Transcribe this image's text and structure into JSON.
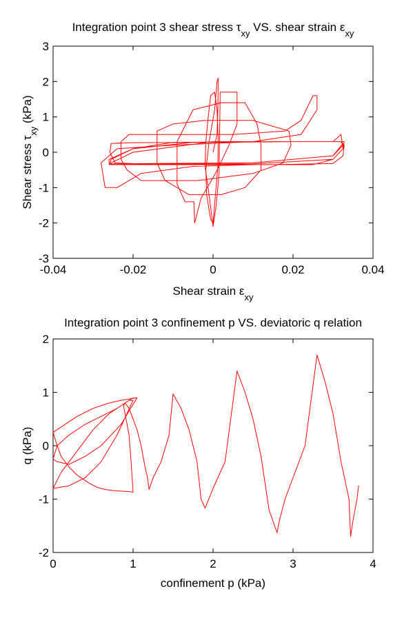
{
  "chart_data": [
    {
      "type": "line",
      "title": "Integration point 3 shear stress τxy VS. shear strain εxy",
      "xlabel": "Shear strain εxy",
      "ylabel": "Shear stress τxy (kPa)",
      "xlim": [
        -0.04,
        0.04
      ],
      "ylim": [
        -3,
        3
      ],
      "xticks": [
        -0.04,
        -0.02,
        0,
        0.02,
        0.04
      ],
      "xtick_labels": [
        "-0.04",
        "-0.02",
        "0",
        "0.02",
        "0.04"
      ],
      "yticks": [
        -3,
        -2,
        -1,
        0,
        1,
        2,
        3
      ],
      "ytick_labels": [
        "-3",
        "-2",
        "-1",
        "0",
        "1",
        "2",
        "3"
      ],
      "grid": false,
      "color": "#ff0000",
      "series": [
        {
          "x": [
            0,
            0.001,
            0.0012,
            0.0013,
            0.001,
            0.0004,
            -0.001,
            -0.0018,
            -0.0016,
            -0.0006,
            0,
            0.0006,
            0.0012,
            0.0013,
            0.001,
            0.0004,
            -0.0006,
            -0.0012,
            -0.0018,
            -0.002,
            -0.001,
            0,
            0.0008,
            0.0015,
            0.0018,
            0.006,
            0.006,
            0.004,
            0.0006,
            -0.003,
            -0.0046,
            -0.0048,
            -0.007,
            -0.009,
            -0.009,
            -0.005,
            0.002,
            0.008,
            0.011,
            0.012,
            0.012,
            0.008,
            0.002,
            -0.006,
            -0.012,
            -0.014,
            -0.014,
            -0.01,
            -0.002,
            0.01,
            0.019,
            0.0195,
            0.0175,
            0.01,
            -0.004,
            -0.018,
            -0.0215,
            -0.023,
            -0.023,
            -0.021,
            -0.012,
            0.005,
            0.018,
            0.022,
            0.025,
            0.026,
            0.026,
            0.022,
            0.01,
            -0.01,
            -0.024,
            -0.028,
            -0.027,
            -0.024,
            -0.018,
            -0.005,
            0.01,
            0.025,
            0.03,
            0.0325,
            0.032,
            0.03,
            0.02,
            0,
            -0.02,
            -0.0255,
            -0.0258,
            -0.0245,
            -0.015,
            0,
            0.015,
            0.03,
            0.0325,
            0.0328,
            0.032,
            0.025,
            0.01,
            -0.01,
            -0.02,
            -0.026,
            -0.026,
            -0.025,
            -0.015,
            0.01,
            0.03,
            0.0325,
            0.0328,
            0.03,
            0.015,
            -0.005,
            -0.02,
            -0.0255,
            -0.0258,
            -0.025,
            -0.01,
            0.01,
            0.03,
            0.0325,
            0.032,
            0.02,
            0,
            -0.02,
            -0.0255,
            -0.0255,
            -0.015,
            0.01,
            0.03,
            0.0325
          ],
          "y": [
            0,
            0.5,
            1.2,
            2.1,
            2.0,
            1.2,
            0.3,
            -0.5,
            -1.2,
            -1.9,
            -2.0,
            -1.2,
            -0.4,
            0.4,
            1.2,
            1.7,
            1.6,
            1.0,
            0.3,
            -0.4,
            -1.2,
            -2.1,
            -1.5,
            -0.6,
            1.7,
            1.7,
            0.8,
            0.2,
            -0.6,
            -1.3,
            -2.0,
            -1.4,
            -1.4,
            -0.9,
            0.3,
            1.2,
            1.4,
            1.4,
            0.8,
            0.2,
            -0.5,
            -1.0,
            -1.2,
            -1.2,
            -0.8,
            -0.3,
            0.6,
            0.8,
            0.9,
            0.9,
            0.6,
            0.2,
            -0.3,
            -0.6,
            -0.8,
            -0.8,
            -0.5,
            -0.2,
            0.3,
            0.5,
            0.5,
            0.5,
            0.6,
            0.9,
            1.6,
            1.6,
            1.2,
            0.5,
            0.3,
            0.2,
            0.1,
            -0.3,
            -1.0,
            -1.0,
            -0.6,
            -0.4,
            -0.35,
            -0.35,
            -0.2,
            0.1,
            0.5,
            0.3,
            0.3,
            0.28,
            0.27,
            0.25,
            0.0,
            -0.3,
            -0.35,
            -0.35,
            -0.35,
            -0.32,
            -0.1,
            0.2,
            0.3,
            0.3,
            0.3,
            0.28,
            0.1,
            -0.2,
            -0.35,
            -0.35,
            -0.35,
            -0.33,
            -0.2,
            0.1,
            0.3,
            0.3,
            0.3,
            0.28,
            0.1,
            -0.2,
            -0.33,
            -0.33,
            -0.33,
            -0.3,
            -0.1,
            0.2,
            0.3,
            0.3,
            0.3,
            0.0,
            -0.3,
            -0.33,
            -0.32,
            -0.3,
            -0.1,
            0.25
          ]
        }
      ]
    },
    {
      "type": "line",
      "title": "Integration point 3 confinement p VS. deviatoric q relation",
      "xlabel": "confinement p (kPa)",
      "ylabel": "q (kPa)",
      "xlim": [
        0,
        4
      ],
      "ylim": [
        -2,
        2
      ],
      "xticks": [
        0,
        1,
        2,
        3,
        4
      ],
      "xtick_labels": [
        "0",
        "1",
        "2",
        "3",
        "4"
      ],
      "yticks": [
        -2,
        -1,
        0,
        1,
        2
      ],
      "ytick_labels": [
        "-2",
        "-1",
        "0",
        "1",
        "2"
      ],
      "grid": false,
      "color": "#ff0000",
      "series": [
        {
          "x": [
            0.0,
            0.03,
            0.1,
            0.2,
            0.3,
            0.45,
            0.55,
            0.65,
            0.75,
            0.85,
            0.95,
            1.0,
            0.98,
            0.95,
            0.9,
            0.88,
            0.9,
            0.95,
            1.0,
            1.05,
            1.1,
            1.15,
            1.18,
            1.2,
            1.25,
            1.35,
            1.45,
            1.5,
            1.6,
            1.7,
            1.8,
            1.85,
            1.9,
            2.0,
            2.15,
            2.3,
            2.4,
            2.5,
            2.6,
            2.7,
            2.8,
            2.83,
            2.9,
            3.0,
            3.15,
            3.3,
            3.4,
            3.5,
            3.6,
            3.7,
            3.72,
            3.75,
            3.8,
            3.82
          ],
          "y": [
            0.25,
            0.1,
            -0.2,
            -0.4,
            -0.55,
            -0.7,
            -0.78,
            -0.82,
            -0.84,
            -0.85,
            -0.86,
            -0.87,
            -0.4,
            0.2,
            0.6,
            0.75,
            0.8,
            0.7,
            0.5,
            0.3,
            0.0,
            -0.4,
            -0.6,
            -0.82,
            -0.6,
            -0.3,
            0.2,
            0.97,
            0.7,
            0.3,
            -0.3,
            -1.0,
            -1.17,
            -0.8,
            -0.3,
            1.4,
            1.0,
            0.5,
            -0.2,
            -1.2,
            -1.63,
            -1.4,
            -1.0,
            -0.6,
            0.0,
            1.7,
            1.2,
            0.6,
            -0.3,
            -1.0,
            -1.7,
            -1.4,
            -1.0,
            -0.75
          ]
        },
        {
          "x": [
            0.0,
            0.1,
            0.3,
            0.5,
            0.7,
            0.85,
            1.05,
            0.85,
            0.6,
            0.4,
            0.2,
            0.05,
            0.0,
            0.05,
            0.2,
            0.4,
            0.6,
            0.8,
            0.95,
            1.0,
            0.8,
            0.6,
            0.4,
            0.2,
            0.0,
            0.1,
            0.3,
            0.5,
            0.7,
            0.9,
            1.0
          ],
          "y": [
            0.25,
            0.35,
            0.55,
            0.7,
            0.8,
            0.85,
            0.9,
            0.4,
            0.0,
            -0.2,
            -0.35,
            -0.3,
            -0.25,
            0.0,
            0.2,
            0.4,
            0.55,
            0.7,
            0.85,
            0.85,
            0.2,
            -0.3,
            -0.6,
            -0.75,
            -0.8,
            -0.5,
            -0.1,
            0.3,
            0.6,
            0.8,
            0.9
          ]
        }
      ]
    }
  ]
}
